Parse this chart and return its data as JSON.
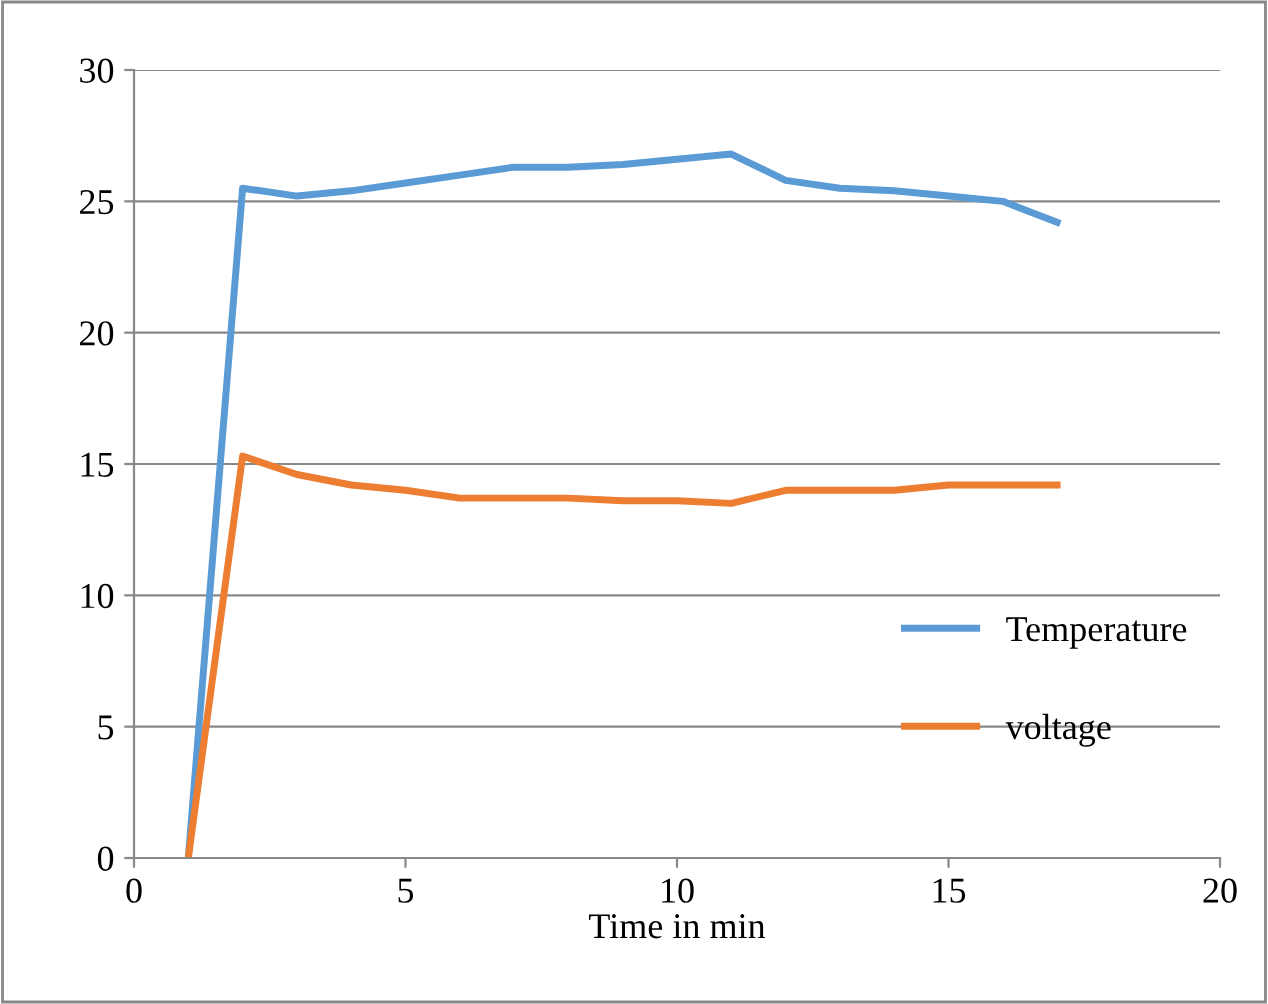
{
  "chart_data": {
    "type": "line",
    "xlabel": "Time in min",
    "x": [
      1,
      2,
      3,
      4,
      5,
      6,
      7,
      8,
      9,
      10,
      11,
      12,
      13,
      14,
      15,
      16,
      17
    ],
    "series": [
      {
        "name": "Temperature",
        "color": "#5b9bd5",
        "values": [
          0,
          25.5,
          25.2,
          25.4,
          25.7,
          26.0,
          26.3,
          26.3,
          26.4,
          26.6,
          26.8,
          25.8,
          25.5,
          25.4,
          25.2,
          25.0,
          24.2
        ]
      },
      {
        "name": "voltage",
        "color": "#ed7d31",
        "values": [
          0,
          15.3,
          14.6,
          14.2,
          14.0,
          13.7,
          13.7,
          13.7,
          13.6,
          13.6,
          13.5,
          14.0,
          14.0,
          14.0,
          14.2,
          14.2,
          14.2
        ]
      }
    ],
    "xlim": [
      0,
      20
    ],
    "xticks": [
      0,
      5,
      10,
      15,
      20
    ],
    "ylim": [
      0,
      30
    ],
    "yticks": [
      0,
      5,
      10,
      15,
      20,
      25,
      30
    ],
    "grid": "y",
    "legend": "lower right",
    "marker": "none",
    "line_style": "solid"
  }
}
